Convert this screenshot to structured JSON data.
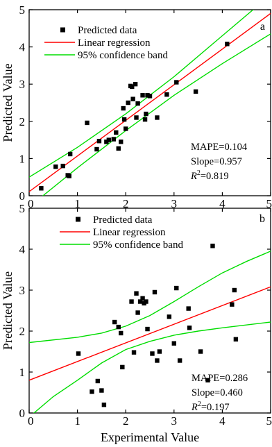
{
  "chart_data": [
    {
      "type": "scatter",
      "panel_label": "a",
      "xlim": [
        0,
        5
      ],
      "ylim": [
        0,
        5
      ],
      "xticks": [
        "0",
        "1",
        "2",
        "3",
        "4",
        "5"
      ],
      "yticks": [
        "0",
        "1",
        "2",
        "3",
        "4",
        "5"
      ],
      "xlabel": "",
      "ylabel": "Predicted Value",
      "legend_position": "top-left",
      "grid": false,
      "legend": [
        {
          "key": "points",
          "label": "Predicted data"
        },
        {
          "key": "fit",
          "label": "Linear regression"
        },
        {
          "key": "band",
          "label": "95% confidence band"
        }
      ],
      "colors": {
        "points": "#000000",
        "fit": "#ff0000",
        "band": "#00dd00"
      },
      "points": [
        {
          "x": 0.25,
          "y": 0.2
        },
        {
          "x": 0.55,
          "y": 0.78
        },
        {
          "x": 0.7,
          "y": 0.8
        },
        {
          "x": 0.8,
          "y": 0.55
        },
        {
          "x": 0.83,
          "y": 0.53
        },
        {
          "x": 0.85,
          "y": 1.12
        },
        {
          "x": 1.2,
          "y": 1.96
        },
        {
          "x": 1.4,
          "y": 1.25
        },
        {
          "x": 1.45,
          "y": 1.47
        },
        {
          "x": 1.6,
          "y": 1.45
        },
        {
          "x": 1.65,
          "y": 1.5
        },
        {
          "x": 1.75,
          "y": 1.52
        },
        {
          "x": 1.8,
          "y": 1.7
        },
        {
          "x": 1.85,
          "y": 1.27
        },
        {
          "x": 1.9,
          "y": 1.45
        },
        {
          "x": 1.95,
          "y": 2.35
        },
        {
          "x": 1.97,
          "y": 2.05
        },
        {
          "x": 2.0,
          "y": 1.8
        },
        {
          "x": 2.05,
          "y": 2.5
        },
        {
          "x": 2.1,
          "y": 2.95
        },
        {
          "x": 2.13,
          "y": 2.93
        },
        {
          "x": 2.15,
          "y": 2.6
        },
        {
          "x": 2.2,
          "y": 3.0
        },
        {
          "x": 2.22,
          "y": 2.1
        },
        {
          "x": 2.25,
          "y": 2.48
        },
        {
          "x": 2.35,
          "y": 2.7
        },
        {
          "x": 2.4,
          "y": 2.05
        },
        {
          "x": 2.42,
          "y": 2.2
        },
        {
          "x": 2.45,
          "y": 2.7
        },
        {
          "x": 2.5,
          "y": 2.68
        },
        {
          "x": 2.65,
          "y": 2.1
        },
        {
          "x": 2.85,
          "y": 2.72
        },
        {
          "x": 3.05,
          "y": 3.05
        },
        {
          "x": 3.45,
          "y": 2.8
        },
        {
          "x": 4.1,
          "y": 4.08
        }
      ],
      "regression": {
        "start": [
          0,
          0.11
        ],
        "end": [
          5,
          4.9
        ]
      },
      "band_upper": [
        [
          0,
          0.5
        ],
        [
          1,
          1.3
        ],
        [
          2,
          2.2
        ],
        [
          3,
          3.2
        ],
        [
          4,
          4.3
        ],
        [
          5,
          5.4
        ]
      ],
      "band_lower": [
        [
          0,
          -0.3
        ],
        [
          1,
          0.75
        ],
        [
          2,
          1.75
        ],
        [
          3,
          2.7
        ],
        [
          4,
          3.55
        ],
        [
          5,
          4.35
        ]
      ],
      "annotations": [
        {
          "key": "mape",
          "text": "MAPE=0.104"
        },
        {
          "key": "slope",
          "text": "Slope=0.957"
        },
        {
          "key": "r2",
          "text": "=0.819"
        }
      ]
    },
    {
      "type": "scatter",
      "panel_label": "b",
      "xlim": [
        0,
        5
      ],
      "ylim": [
        0,
        5
      ],
      "xticks": [
        "0",
        "1",
        "2",
        "3",
        "4",
        "5"
      ],
      "yticks": [
        "0",
        "1",
        "2",
        "3",
        "4",
        "5"
      ],
      "xlabel": "Experimental Value",
      "ylabel": "Predicted Value",
      "legend_position": "top-center",
      "grid": false,
      "legend": [
        {
          "key": "points",
          "label": "Predicted data"
        },
        {
          "key": "fit",
          "label": "Linear regression"
        },
        {
          "key": "band",
          "label": "95% confidence band"
        }
      ],
      "colors": {
        "points": "#000000",
        "fit": "#ff0000",
        "band": "#00dd00"
      },
      "points": [
        {
          "x": 1.02,
          "y": 1.45
        },
        {
          "x": 1.3,
          "y": 0.52
        },
        {
          "x": 1.42,
          "y": 0.78
        },
        {
          "x": 1.5,
          "y": 0.55
        },
        {
          "x": 1.55,
          "y": 0.2
        },
        {
          "x": 1.77,
          "y": 2.22
        },
        {
          "x": 1.85,
          "y": 2.1
        },
        {
          "x": 1.9,
          "y": 1.95
        },
        {
          "x": 1.93,
          "y": 1.12
        },
        {
          "x": 2.12,
          "y": 2.72
        },
        {
          "x": 2.17,
          "y": 1.48
        },
        {
          "x": 2.22,
          "y": 2.92
        },
        {
          "x": 2.25,
          "y": 2.45
        },
        {
          "x": 2.3,
          "y": 2.72
        },
        {
          "x": 2.35,
          "y": 2.8
        },
        {
          "x": 2.38,
          "y": 2.68
        },
        {
          "x": 2.42,
          "y": 2.72
        },
        {
          "x": 2.45,
          "y": 2.05
        },
        {
          "x": 2.55,
          "y": 1.45
        },
        {
          "x": 2.6,
          "y": 2.95
        },
        {
          "x": 2.65,
          "y": 1.28
        },
        {
          "x": 2.7,
          "y": 1.5
        },
        {
          "x": 2.9,
          "y": 2.35
        },
        {
          "x": 3.0,
          "y": 1.7
        },
        {
          "x": 3.05,
          "y": 3.05
        },
        {
          "x": 3.12,
          "y": 1.28
        },
        {
          "x": 3.3,
          "y": 2.55
        },
        {
          "x": 3.32,
          "y": 2.08
        },
        {
          "x": 3.55,
          "y": 1.5
        },
        {
          "x": 3.7,
          "y": 0.8
        },
        {
          "x": 3.8,
          "y": 4.08
        },
        {
          "x": 4.2,
          "y": 2.65
        },
        {
          "x": 4.25,
          "y": 3.0
        },
        {
          "x": 4.28,
          "y": 1.8
        }
      ],
      "regression": {
        "start": [
          0,
          0.8
        ],
        "end": [
          5,
          3.08
        ]
      },
      "band_upper": [
        [
          0,
          1.72
        ],
        [
          1,
          1.85
        ],
        [
          1.5,
          1.95
        ],
        [
          2,
          2.12
        ],
        [
          2.5,
          2.38
        ],
        [
          3,
          2.72
        ],
        [
          3.5,
          3.08
        ],
        [
          4,
          3.42
        ],
        [
          4.5,
          3.7
        ],
        [
          5,
          3.95
        ]
      ],
      "band_lower": [
        [
          0,
          -0.1
        ],
        [
          0.5,
          0.4
        ],
        [
          1,
          0.8
        ],
        [
          1.5,
          1.22
        ],
        [
          2,
          1.55
        ],
        [
          2.5,
          1.75
        ],
        [
          3,
          1.9
        ],
        [
          3.5,
          2.0
        ],
        [
          4,
          2.08
        ],
        [
          5,
          2.22
        ]
      ],
      "annotations": [
        {
          "key": "mape",
          "text": "MAPE=0.286"
        },
        {
          "key": "slope",
          "text": "Slope=0.460"
        },
        {
          "key": "r2",
          "text": "=0.197"
        }
      ]
    }
  ]
}
